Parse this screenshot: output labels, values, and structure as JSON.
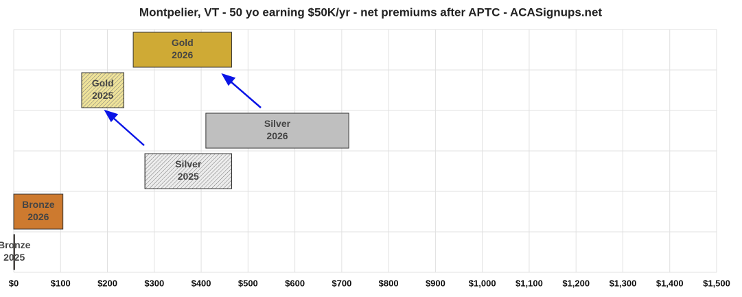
{
  "chart_data": {
    "type": "floating-bar",
    "title": "Montpelier, VT - 50 yo earning $50K/yr - net premiums after APTC - ACASignups.net",
    "bars": [
      {
        "name": "Gold",
        "year": "2026",
        "start": 255,
        "end": 465,
        "color": "#cfaa35",
        "hatched": false
      },
      {
        "name": "Gold",
        "year": "2025",
        "start": 145,
        "end": 235,
        "color": "#efe39a",
        "hatched": true
      },
      {
        "name": "Silver",
        "year": "2026",
        "start": 410,
        "end": 715,
        "color": "#bfbfbf",
        "hatched": false
      },
      {
        "name": "Silver",
        "year": "2025",
        "start": 280,
        "end": 465,
        "color": "#ededed",
        "hatched": true
      },
      {
        "name": "Bronze",
        "year": "2026",
        "start": 0,
        "end": 105,
        "color": "#cd7a2f",
        "hatched": false
      },
      {
        "name": "Bronze",
        "year": "2025",
        "start": 0,
        "end": 2,
        "color": "#e8b98a",
        "hatched": true
      }
    ],
    "xlim": [
      0,
      1500
    ],
    "xticks": [
      {
        "value": 0,
        "label": "$0"
      },
      {
        "value": 100,
        "label": "$100"
      },
      {
        "value": 200,
        "label": "$200"
      },
      {
        "value": 300,
        "label": "$300"
      },
      {
        "value": 400,
        "label": "$400"
      },
      {
        "value": 500,
        "label": "$500"
      },
      {
        "value": 600,
        "label": "$600"
      },
      {
        "value": 700,
        "label": "$700"
      },
      {
        "value": 800,
        "label": "$800"
      },
      {
        "value": 900,
        "label": "$900"
      },
      {
        "value": 1000,
        "label": "$1,000"
      },
      {
        "value": 1100,
        "label": "$1,100"
      },
      {
        "value": 1200,
        "label": "$1,200"
      },
      {
        "value": 1300,
        "label": "$1,300"
      },
      {
        "value": 1400,
        "label": "$1,400"
      },
      {
        "value": 1500,
        "label": "$1,500"
      }
    ],
    "grid": true
  }
}
